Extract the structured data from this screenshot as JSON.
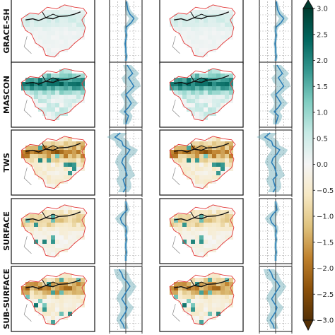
{
  "chart_data": {
    "type": "heatmap",
    "rows": [
      "GRACE-SH",
      "MASCON",
      "TWS",
      "SURFACE",
      "SUB-SURFACE"
    ],
    "colorbar": {
      "min": -3.0,
      "max": 3.0,
      "ticks": [
        "3.0",
        "2.5",
        "2.0",
        "1.5",
        "1.0",
        "0.5",
        "0.0",
        "−0.5",
        "−1.0",
        "−1.5",
        "−2.0",
        "−2.5",
        "−3.0"
      ],
      "colors": [
        "#543005",
        "#8c510a",
        "#bf812d",
        "#dfc27d",
        "#f6e8c3",
        "#f5f5f5",
        "#c7eae5",
        "#80cdc1",
        "#35978f",
        "#01665e",
        "#003c30"
      ],
      "extend": "both"
    },
    "profile_color": "#2c7fb8",
    "profile_band_color": "#66a8b3",
    "basin_outline_color": "#e23a3a",
    "river_color": "#111111",
    "profiles": [
      {
        "row": "GRACE-SH",
        "mean": [
          0.05,
          0.1,
          0.15,
          0.3,
          0.6,
          0.4,
          0.05,
          0.0,
          0.05,
          0.0,
          -0.05,
          0.0,
          0.0,
          0.05,
          0.0
        ],
        "spread": [
          0.1,
          0.15,
          0.2,
          0.3,
          0.35,
          0.3,
          0.2,
          0.1,
          0.1,
          0.1,
          0.1,
          0.1,
          0.1,
          0.1,
          0.1
        ]
      },
      {
        "row": "MASCON",
        "mean": [
          0.1,
          0.3,
          0.5,
          0.2,
          0.4,
          0.6,
          0.3,
          0.0,
          0.2,
          0.4,
          0.2,
          -0.1,
          0.2,
          0.1,
          0.0
        ],
        "spread": [
          0.3,
          0.4,
          0.5,
          0.5,
          0.6,
          0.5,
          0.4,
          0.4,
          0.4,
          0.5,
          0.4,
          0.4,
          0.3,
          0.3,
          0.2
        ]
      },
      {
        "row": "TWS",
        "mean": [
          -0.4,
          -0.8,
          -0.3,
          -0.2,
          0.3,
          0.1,
          -0.2,
          -0.3,
          -0.1,
          0.0,
          0.1,
          -0.2,
          -0.1,
          0.0,
          -0.2
        ],
        "spread": [
          0.5,
          0.6,
          0.5,
          0.5,
          0.6,
          0.6,
          0.5,
          0.5,
          0.5,
          0.5,
          0.6,
          0.5,
          0.5,
          0.4,
          0.4
        ]
      },
      {
        "row": "SURFACE",
        "mean": [
          0.0,
          0.05,
          0.1,
          -0.2,
          -0.4,
          -0.3,
          0.0,
          0.05,
          0.0,
          0.05,
          0.0,
          0.0,
          0.05,
          0.0,
          0.0
        ],
        "spread": [
          0.1,
          0.15,
          0.2,
          0.3,
          0.4,
          0.3,
          0.2,
          0.15,
          0.1,
          0.1,
          0.1,
          0.1,
          0.1,
          0.1,
          0.1
        ]
      },
      {
        "row": "SUB-SURFACE",
        "mean": [
          -0.5,
          -0.3,
          -0.2,
          0.1,
          0.3,
          0.1,
          -0.1,
          -0.3,
          -0.1,
          0.1,
          0.0,
          -0.2,
          -0.4,
          -0.2,
          -0.1
        ],
        "spread": [
          0.4,
          0.5,
          0.5,
          0.4,
          0.5,
          0.5,
          0.5,
          0.4,
          0.4,
          0.5,
          0.4,
          0.4,
          0.3,
          0.3,
          0.3
        ]
      }
    ]
  }
}
